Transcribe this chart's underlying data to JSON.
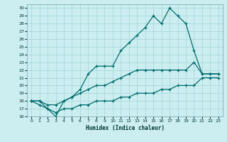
{
  "xlabel": "Humidex (Indice chaleur)",
  "background_color": "#cceef0",
  "grid_color": "#aad8dc",
  "line_color": "#006b6b",
  "xlim": [
    -0.5,
    23.5
  ],
  "ylim": [
    16,
    30.5
  ],
  "xtick_labels": [
    "0",
    "1",
    "2",
    "3",
    "4",
    "5",
    "6",
    "7",
    "8",
    "9",
    "10",
    "11",
    "12",
    "13",
    "14",
    "15",
    "16",
    "17",
    "18",
    "19",
    "20",
    "21",
    "22",
    "23"
  ],
  "xticks": [
    0,
    1,
    2,
    3,
    4,
    5,
    6,
    7,
    8,
    9,
    10,
    11,
    12,
    13,
    14,
    15,
    16,
    17,
    18,
    19,
    20,
    21,
    22,
    23
  ],
  "yticks": [
    16,
    17,
    18,
    19,
    20,
    21,
    22,
    23,
    24,
    25,
    26,
    27,
    28,
    29,
    30
  ],
  "line1_x": [
    0,
    1,
    2,
    3,
    4,
    5,
    6,
    7,
    8,
    9,
    10,
    11,
    12,
    13,
    14,
    15,
    16,
    17,
    18,
    19,
    20,
    21,
    22,
    23
  ],
  "line1_y": [
    18,
    18,
    17,
    16,
    18,
    18.5,
    19.5,
    21.5,
    22.5,
    22.5,
    22.5,
    24.5,
    25.5,
    26.5,
    27.5,
    29,
    28,
    30,
    29,
    28,
    24.5,
    21.5,
    21.5,
    21.5
  ],
  "line2_x": [
    0,
    1,
    2,
    3,
    4,
    5,
    6,
    7,
    8,
    9,
    10,
    11,
    12,
    13,
    14,
    15,
    16,
    17,
    18,
    19,
    20,
    21,
    22,
    23
  ],
  "line2_y": [
    18,
    18,
    17.5,
    17.5,
    18,
    18.5,
    19,
    19.5,
    20,
    20,
    20.5,
    21,
    21.5,
    22,
    22,
    22,
    22,
    22,
    22,
    22,
    23,
    21.5,
    21.5,
    21.5
  ],
  "line3_x": [
    0,
    1,
    2,
    3,
    4,
    5,
    6,
    7,
    8,
    9,
    10,
    11,
    12,
    13,
    14,
    15,
    16,
    17,
    18,
    19,
    20,
    21,
    22,
    23
  ],
  "line3_y": [
    18,
    17.5,
    17,
    16.5,
    17,
    17,
    17.5,
    17.5,
    18,
    18,
    18,
    18.5,
    18.5,
    19,
    19,
    19,
    19.5,
    19.5,
    20,
    20,
    20,
    21,
    21,
    21
  ]
}
